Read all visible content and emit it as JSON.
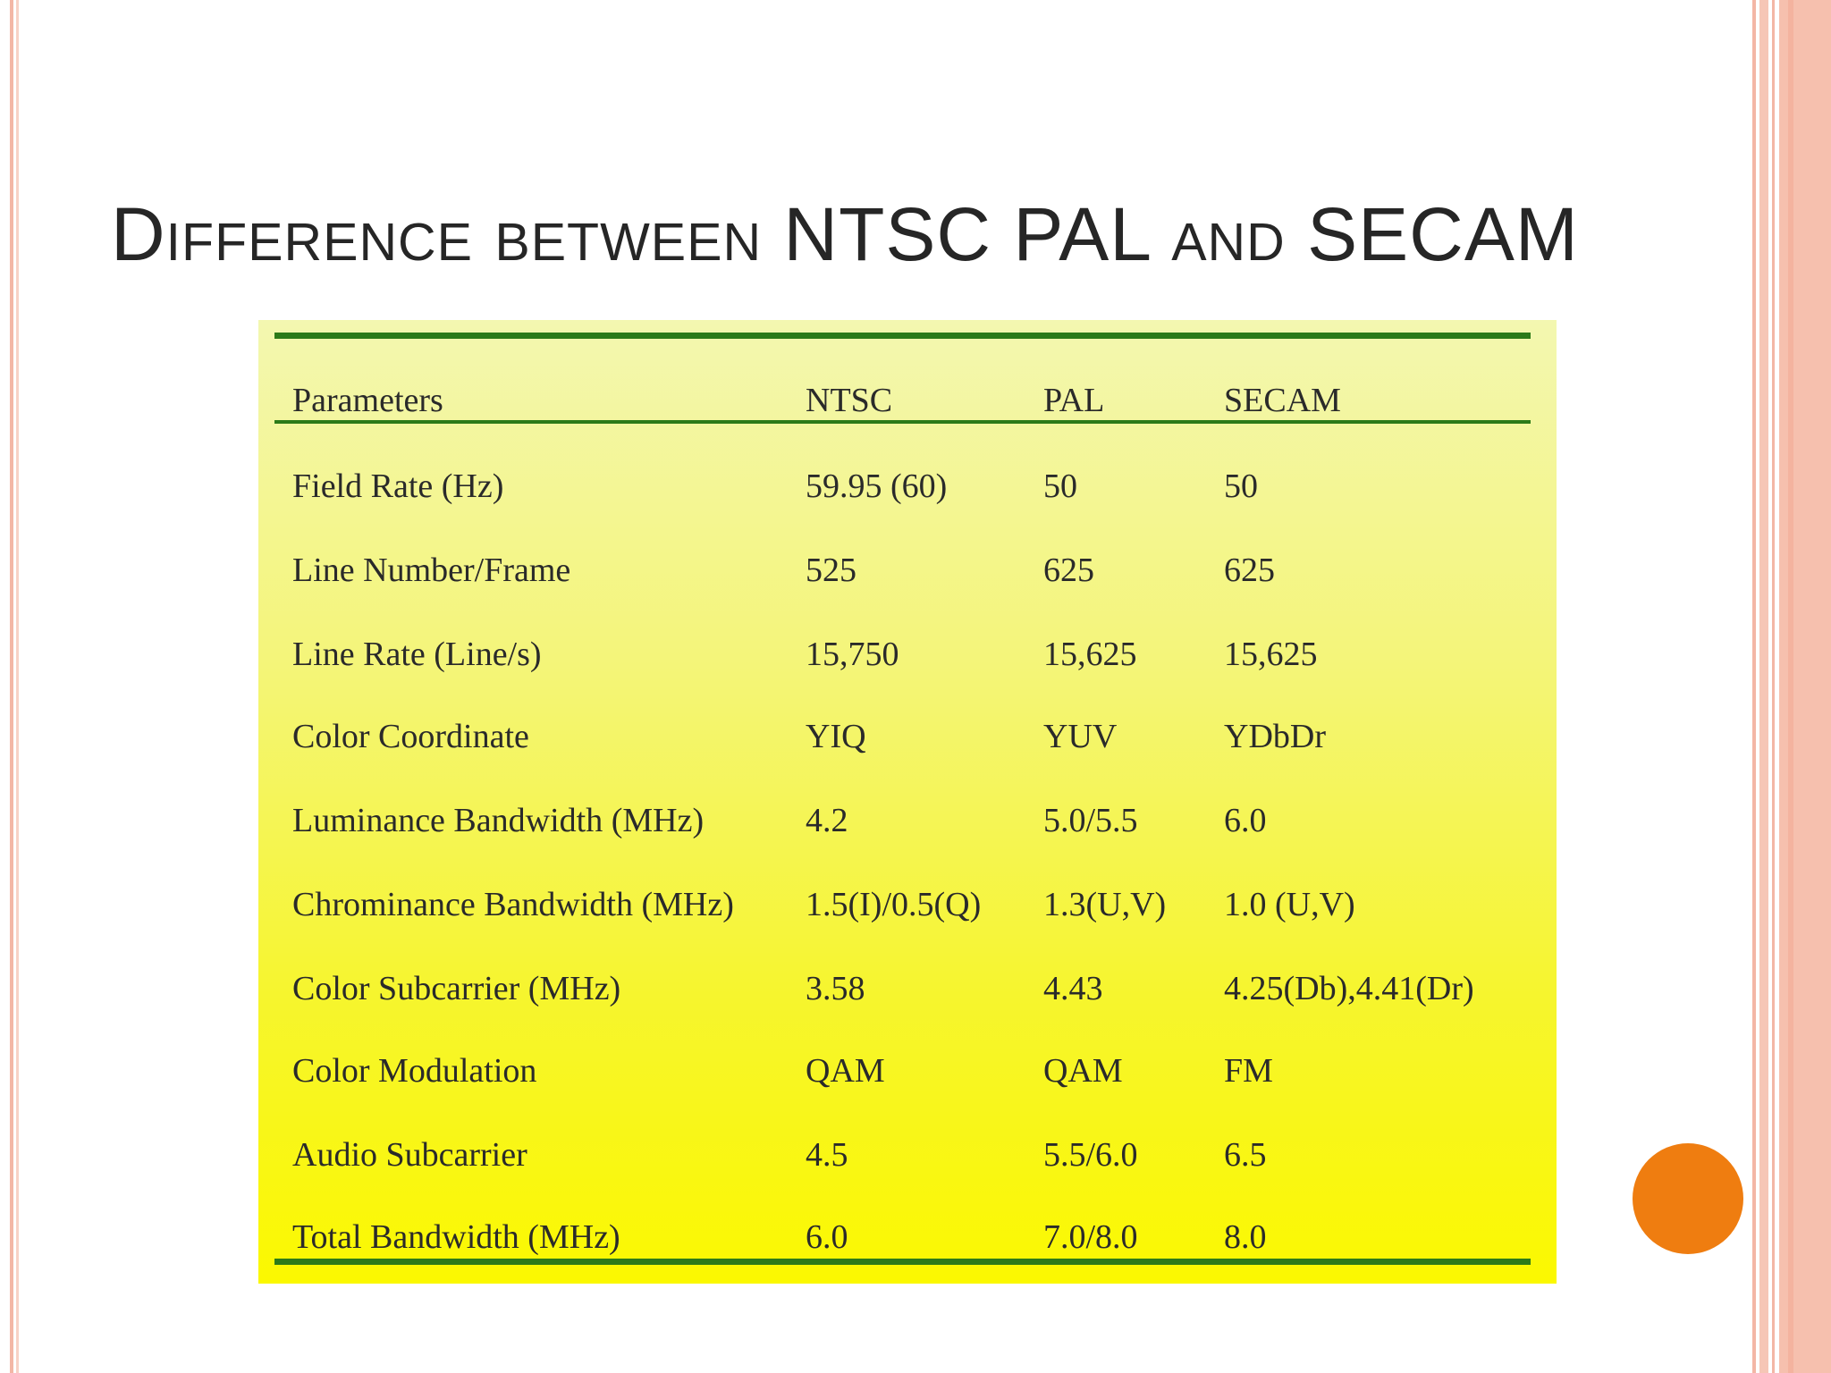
{
  "slide": {
    "title": "Difference between NTSC PAL and SECAM"
  },
  "table": {
    "headers": [
      "Parameters",
      "NTSC",
      "PAL",
      "SECAM"
    ],
    "rows": [
      [
        "Field Rate (Hz)",
        "59.95 (60)",
        "50",
        "50"
      ],
      [
        "Line Number/Frame",
        "525",
        "625",
        "625"
      ],
      [
        "Line Rate (Line/s)",
        "15,750",
        "15,625",
        "15,625"
      ],
      [
        "Color Coordinate",
        "YIQ",
        "YUV",
        "YDbDr"
      ],
      [
        "Luminance Bandwidth (MHz)",
        "4.2",
        "5.0/5.5",
        "6.0"
      ],
      [
        "Chrominance Bandwidth (MHz)",
        "1.5(I)/0.5(Q)",
        "1.3(U,V)",
        "1.0 (U,V)"
      ],
      [
        "Color Subcarrier (MHz)",
        "3.58",
        "4.43",
        "4.25(Db),4.41(Dr)"
      ],
      [
        "Color Modulation",
        "QAM",
        "QAM",
        "FM"
      ],
      [
        "Audio Subcarrier",
        "4.5",
        "5.5/6.0",
        "6.5"
      ],
      [
        "Total Bandwidth (MHz)",
        "6.0",
        "7.0/8.0",
        "8.0"
      ]
    ]
  },
  "colors": {
    "accent_circle": "#ef7d10",
    "rule_green": "#2c7a19",
    "panel_yellow": "#fbf800",
    "border_salmon": "#f3b7a6"
  }
}
